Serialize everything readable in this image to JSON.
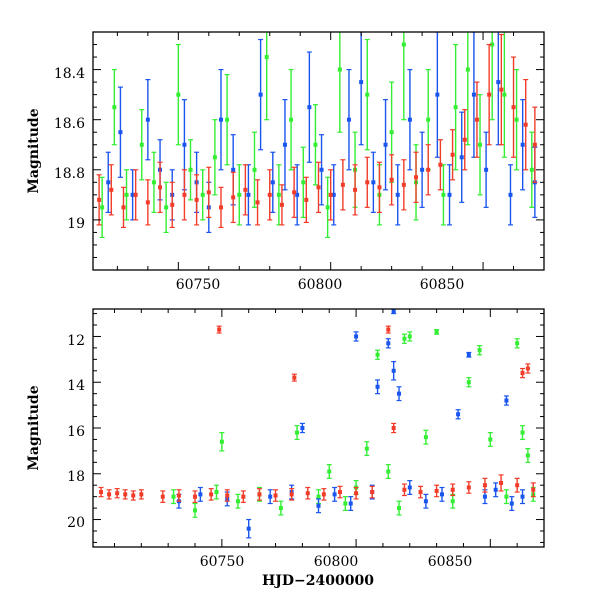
{
  "chart_data": [
    {
      "type": "scatter",
      "panel": "top",
      "title": "",
      "xlabel": "",
      "ylabel": "Magnitude",
      "xlim": [
        60722,
        60870
      ],
      "ylim": [
        19.2,
        18.25
      ],
      "y_inverted": true,
      "error_bars": true,
      "grid": false,
      "legend": "none",
      "x_ticks": [
        60750,
        60800,
        60850
      ],
      "x_tick_labels": [
        "60750",
        "60800",
        "60850"
      ],
      "y_ticks": [
        18.4,
        18.6,
        18.8,
        19.0
      ],
      "y_tick_labels": [
        "18.4",
        "18.6",
        "18.8",
        "19"
      ],
      "series": [
        {
          "color": "#33ee33",
          "draw_order": 1,
          "x": [
            60725,
            60729,
            60733,
            60738,
            60742,
            60746,
            60750,
            60754,
            60758,
            60762,
            60766,
            60770,
            60775,
            60779,
            60783,
            60787,
            60791,
            60795,
            60799,
            60803,
            60808,
            60812,
            60816,
            60820,
            60824,
            60828,
            60832,
            60837,
            60841,
            60845,
            60849,
            60853,
            60857,
            60861,
            60866
          ],
          "y": [
            18.95,
            18.55,
            18.9,
            18.7,
            18.85,
            18.95,
            18.5,
            18.8,
            18.9,
            18.75,
            18.6,
            18.9,
            18.8,
            18.35,
            18.9,
            18.6,
            18.85,
            18.7,
            18.95,
            18.4,
            18.8,
            18.5,
            18.9,
            18.65,
            18.3,
            18.85,
            18.6,
            18.9,
            18.55,
            18.4,
            18.7,
            18.3,
            18.5,
            18.6,
            18.8
          ],
          "err": [
            0.12,
            0.15,
            0.1,
            0.14,
            0.12,
            0.1,
            0.2,
            0.12,
            0.1,
            0.15,
            0.18,
            0.12,
            0.15,
            0.25,
            0.12,
            0.2,
            0.14,
            0.16,
            0.12,
            0.25,
            0.15,
            0.22,
            0.12,
            0.2,
            0.3,
            0.15,
            0.2,
            0.12,
            0.25,
            0.3,
            0.2,
            0.3,
            0.25,
            0.2,
            0.15
          ]
        },
        {
          "color": "#1a55ee",
          "draw_order": 2,
          "x": [
            60727,
            60731,
            60735,
            60740,
            60744,
            60748,
            60752,
            60756,
            60760,
            60764,
            60768,
            60773,
            60777,
            60781,
            60785,
            60789,
            60793,
            60797,
            60801,
            60806,
            60810,
            60814,
            60818,
            60822,
            60826,
            60830,
            60835,
            60839,
            60843,
            60847,
            60851,
            60855,
            60859,
            60863,
            60867
          ],
          "y": [
            18.85,
            18.65,
            18.9,
            18.6,
            18.8,
            18.9,
            18.7,
            18.85,
            18.95,
            18.6,
            18.8,
            18.9,
            18.5,
            18.85,
            18.7,
            18.9,
            18.55,
            18.8,
            18.9,
            18.6,
            18.45,
            18.85,
            18.7,
            18.9,
            18.6,
            18.8,
            18.5,
            18.9,
            18.75,
            18.5,
            18.8,
            18.45,
            18.9,
            18.7,
            18.85
          ],
          "err": [
            0.12,
            0.18,
            0.1,
            0.16,
            0.12,
            0.1,
            0.18,
            0.12,
            0.1,
            0.2,
            0.14,
            0.12,
            0.22,
            0.12,
            0.18,
            0.12,
            0.22,
            0.14,
            0.12,
            0.2,
            0.25,
            0.12,
            0.18,
            0.12,
            0.2,
            0.15,
            0.25,
            0.12,
            0.18,
            0.25,
            0.15,
            0.25,
            0.12,
            0.18,
            0.14
          ]
        },
        {
          "color": "#f23c2a",
          "draw_order": 3,
          "x": [
            60724,
            60728,
            60732,
            60736,
            60740,
            60744,
            60748,
            60752,
            60756,
            60760,
            60764,
            60768,
            60772,
            60776,
            60780,
            60784,
            60788,
            60792,
            60796,
            60800,
            60804,
            60808,
            60812,
            60816,
            60820,
            60824,
            60828,
            60832,
            60836,
            60840,
            60844,
            60848,
            60852,
            60856,
            60860,
            60864,
            60867
          ],
          "y": [
            18.92,
            18.88,
            18.95,
            18.9,
            18.93,
            18.87,
            18.94,
            18.9,
            18.92,
            18.89,
            18.95,
            18.91,
            18.88,
            18.93,
            18.9,
            18.94,
            18.89,
            18.92,
            18.87,
            18.9,
            18.86,
            18.88,
            18.85,
            18.87,
            18.84,
            18.86,
            18.83,
            18.8,
            18.78,
            18.74,
            18.68,
            18.6,
            18.5,
            18.48,
            18.55,
            18.62,
            18.7
          ],
          "err": [
            0.1,
            0.1,
            0.08,
            0.1,
            0.09,
            0.1,
            0.09,
            0.1,
            0.1,
            0.1,
            0.08,
            0.1,
            0.1,
            0.09,
            0.1,
            0.08,
            0.1,
            0.09,
            0.1,
            0.1,
            0.1,
            0.1,
            0.1,
            0.1,
            0.1,
            0.1,
            0.1,
            0.1,
            0.1,
            0.1,
            0.12,
            0.15,
            0.2,
            0.22,
            0.2,
            0.18,
            0.15
          ]
        }
      ]
    },
    {
      "type": "scatter",
      "panel": "bottom",
      "title": "",
      "xlabel": "HJD−2400000",
      "ylabel": "Magnitude",
      "xlim": [
        60702,
        60870
      ],
      "ylim": [
        21.2,
        10.8
      ],
      "y_inverted": true,
      "error_bars": true,
      "grid": false,
      "legend": "none",
      "x_ticks": [
        60750,
        60800,
        60850
      ],
      "x_tick_labels": [
        "60750",
        "60800",
        "60850"
      ],
      "y_ticks": [
        12,
        14,
        16,
        18,
        20
      ],
      "y_tick_labels": [
        "12",
        "14",
        "16",
        "18",
        "20"
      ],
      "series": [
        {
          "color": "#33ee33",
          "draw_order": 1,
          "x": [
            60732,
            60740,
            60748,
            60750,
            60756,
            60764,
            60772,
            60778,
            60786,
            60790,
            60796,
            60800,
            60804,
            60808,
            60812,
            60816,
            60818,
            60820,
            60826,
            60830,
            60836,
            60842,
            60846,
            60850,
            60856,
            60860,
            60862,
            60864,
            60866
          ],
          "y": [
            19.0,
            19.6,
            18.8,
            16.6,
            19.2,
            18.9,
            19.5,
            16.2,
            19.0,
            17.9,
            19.3,
            18.6,
            16.9,
            12.8,
            17.9,
            19.5,
            12.1,
            12.0,
            16.4,
            11.8,
            19.2,
            14.0,
            12.6,
            16.5,
            19.0,
            12.3,
            16.2,
            17.2,
            18.9
          ],
          "err": [
            0.3,
            0.3,
            0.3,
            0.4,
            0.3,
            0.3,
            0.3,
            0.3,
            0.3,
            0.3,
            0.3,
            0.3,
            0.3,
            0.2,
            0.3,
            0.3,
            0.2,
            0.2,
            0.3,
            0.1,
            0.3,
            0.2,
            0.2,
            0.3,
            0.3,
            0.2,
            0.3,
            0.3,
            0.3
          ]
        },
        {
          "color": "#1a55ee",
          "draw_order": 2,
          "x": [
            60734,
            60742,
            60752,
            60760,
            60768,
            60776,
            60780,
            60786,
            60792,
            60798,
            60800,
            60806,
            60808,
            60812,
            60814,
            60814,
            60816,
            60820,
            60826,
            60832,
            60838,
            60842,
            60848,
            60852,
            60856,
            60858,
            60862
          ],
          "y": [
            19.2,
            18.9,
            19.1,
            20.4,
            19.0,
            18.8,
            16.0,
            19.4,
            18.9,
            19.3,
            12.0,
            18.8,
            14.2,
            12.3,
            13.5,
            10.9,
            14.5,
            18.6,
            19.2,
            18.9,
            15.4,
            12.8,
            19.0,
            18.7,
            14.8,
            19.3,
            19.0
          ],
          "err": [
            0.3,
            0.3,
            0.3,
            0.4,
            0.3,
            0.3,
            0.2,
            0.3,
            0.3,
            0.3,
            0.2,
            0.3,
            0.3,
            0.2,
            0.4,
            0.1,
            0.3,
            0.3,
            0.3,
            0.3,
            0.2,
            0.1,
            0.3,
            0.3,
            0.2,
            0.3,
            0.3
          ]
        },
        {
          "color": "#f23c2a",
          "draw_order": 3,
          "x": [
            60705,
            60708,
            60711,
            60714,
            60717,
            60720,
            60749,
            60777,
            60728,
            60734,
            60740,
            60746,
            60752,
            60758,
            60764,
            60770,
            60776,
            60782,
            60788,
            60794,
            60800,
            60806,
            60812,
            60814,
            60818,
            60824,
            60830,
            60836,
            60842,
            60848,
            60854,
            60860,
            60862,
            60864,
            60866
          ],
          "y": [
            18.8,
            18.9,
            18.85,
            18.9,
            18.95,
            18.9,
            11.7,
            13.8,
            19.0,
            18.95,
            19.0,
            18.9,
            18.95,
            19.0,
            18.9,
            18.95,
            18.9,
            18.85,
            18.9,
            18.8,
            18.85,
            18.8,
            11.7,
            16.0,
            18.7,
            18.8,
            18.75,
            18.7,
            18.6,
            18.5,
            18.4,
            18.5,
            13.6,
            13.4,
            18.7
          ],
          "err": [
            0.2,
            0.2,
            0.2,
            0.2,
            0.2,
            0.2,
            0.15,
            0.15,
            0.25,
            0.25,
            0.25,
            0.25,
            0.25,
            0.25,
            0.25,
            0.25,
            0.25,
            0.25,
            0.25,
            0.25,
            0.25,
            0.25,
            0.15,
            0.2,
            0.25,
            0.25,
            0.25,
            0.25,
            0.25,
            0.3,
            0.35,
            0.3,
            0.2,
            0.2,
            0.3
          ]
        }
      ]
    }
  ]
}
